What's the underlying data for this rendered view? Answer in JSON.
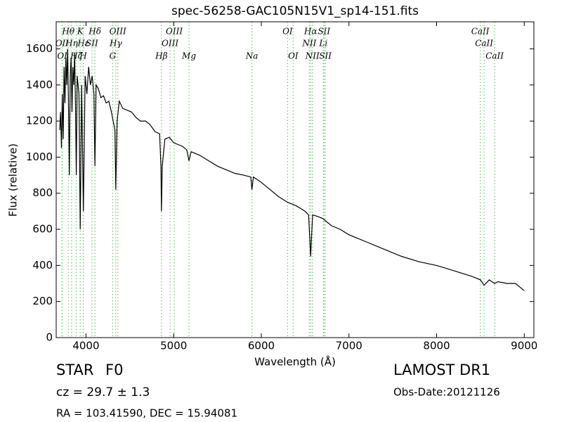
{
  "chart_data": {
    "type": "line",
    "title": "spec-56258-GAC105N15V1_sp14-151.fits",
    "xlabel": "Wavelength (Å)",
    "ylabel": "Flux (relative)",
    "xlim": [
      3660,
      9110
    ],
    "ylim": [
      0,
      1750
    ],
    "xticks": [
      4000,
      5000,
      6000,
      7000,
      8000,
      9000
    ],
    "yticks": [
      0,
      200,
      400,
      600,
      800,
      1000,
      1200,
      1400,
      1600
    ],
    "color": "#000000",
    "line_color": "#66cc66",
    "x": [
      3700,
      3710,
      3720,
      3730,
      3740,
      3750,
      3760,
      3770,
      3780,
      3790,
      3800,
      3810,
      3820,
      3830,
      3840,
      3850,
      3860,
      3870,
      3880,
      3889,
      3900,
      3920,
      3934,
      3950,
      3970,
      3990,
      4010,
      4030,
      4050,
      4070,
      4090,
      4102,
      4115,
      4140,
      4170,
      4200,
      4230,
      4260,
      4290,
      4310,
      4330,
      4340,
      4355,
      4380,
      4420,
      4470,
      4520,
      4570,
      4620,
      4680,
      4730,
      4790,
      4840,
      4855,
      4861,
      4870,
      4900,
      4950,
      5000,
      5050,
      5100,
      5150,
      5175,
      5200,
      5300,
      5400,
      5500,
      5600,
      5700,
      5800,
      5880,
      5893,
      5910,
      6000,
      6100,
      6200,
      6300,
      6400,
      6500,
      6540,
      6563,
      6585,
      6650,
      6700,
      6800,
      6900,
      7000,
      7200,
      7400,
      7600,
      7800,
      8000,
      8200,
      8400,
      8500,
      8542,
      8600,
      8662,
      8700,
      8800,
      8900,
      9000
    ],
    "values": [
      1150,
      1250,
      1050,
      1350,
      1100,
      1500,
      1300,
      1550,
      1400,
      1600,
      1300,
      900,
      1450,
      1550,
      1250,
      1500,
      1400,
      1580,
      1300,
      900,
      1450,
      1350,
      600,
      1400,
      700,
      1450,
      1350,
      1500,
      1400,
      1450,
      1350,
      950,
      1400,
      1380,
      1330,
      1340,
      1300,
      1310,
      1250,
      1200,
      1150,
      820,
      1200,
      1310,
      1270,
      1260,
      1250,
      1220,
      1200,
      1200,
      1180,
      1140,
      1130,
      950,
      700,
      950,
      1100,
      1110,
      1080,
      1070,
      1060,
      1040,
      980,
      1030,
      1010,
      980,
      950,
      930,
      910,
      900,
      890,
      820,
      890,
      860,
      820,
      780,
      750,
      730,
      700,
      680,
      450,
      680,
      670,
      660,
      620,
      600,
      570,
      530,
      490,
      450,
      420,
      400,
      370,
      340,
      320,
      290,
      320,
      300,
      310,
      300,
      300,
      260
    ],
    "line_ids": [
      {
        "x": 3798,
        "label": "Hθ"
      },
      {
        "x": 3934,
        "label": "K"
      },
      {
        "x": 4102,
        "label": "Hδ"
      },
      {
        "x": 4363,
        "label": "OIII"
      },
      {
        "x": 5007,
        "label": "OIII"
      },
      {
        "x": 6300,
        "label": "OI"
      },
      {
        "x": 6563,
        "label": "Hα"
      },
      {
        "x": 6716,
        "label": "SII"
      },
      {
        "x": 8498,
        "label": "CaII"
      },
      {
        "x": 3727,
        "label": "OII"
      },
      {
        "x": 3835,
        "label": "Hη"
      },
      {
        "x": 3970,
        "label": "Hε"
      },
      {
        "x": 4068,
        "label": "SII"
      },
      {
        "x": 4340,
        "label": "Hγ"
      },
      {
        "x": 4959,
        "label": "OIII"
      },
      {
        "x": 6548,
        "label": "NII"
      },
      {
        "x": 6708,
        "label": "Li"
      },
      {
        "x": 8542,
        "label": "CaII"
      },
      {
        "x": 3729,
        "label": "OI"
      },
      {
        "x": 3889,
        "label": "Hζ"
      },
      {
        "x": 3968,
        "label": "H"
      },
      {
        "x": 4304,
        "label": "G"
      },
      {
        "x": 4861,
        "label": "Hβ"
      },
      {
        "x": 5175,
        "label": "Mg"
      },
      {
        "x": 5893,
        "label": "Na"
      },
      {
        "x": 6364,
        "label": "OI"
      },
      {
        "x": 6583,
        "label": "NII"
      },
      {
        "x": 6731,
        "label": "SII"
      },
      {
        "x": 8662,
        "label": "CaII"
      }
    ]
  },
  "info": {
    "class": "STAR",
    "subclass": "F0",
    "cz": "cz = 29.7  ± 1.3",
    "radec": "RA = 103.41590, DEC = 15.94081",
    "survey": "LAMOST DR1",
    "obs_date": "Obs-Date:20121126"
  }
}
